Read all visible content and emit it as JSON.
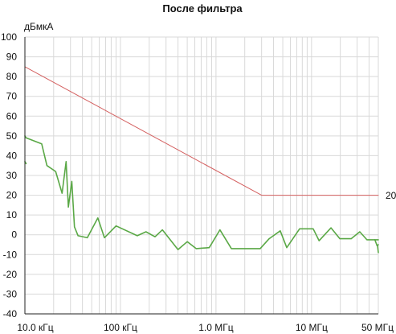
{
  "chart_data": {
    "type": "line",
    "title": "После фильтра",
    "ylabel": "дБмкА",
    "xlabel": "",
    "x_scale": "log",
    "xlim": [
      10000,
      50000000
    ],
    "ylim": [
      -40,
      100
    ],
    "y_ticks": [
      100,
      90,
      80,
      70,
      60,
      50,
      40,
      30,
      20,
      10,
      0,
      -10,
      -20,
      -30,
      -40
    ],
    "x_ticks": [
      {
        "value": 10000,
        "label": "10.0 кГц"
      },
      {
        "value": 100000,
        "label": "100 кГц"
      },
      {
        "value": 1000000,
        "label": "1.0 МГц"
      },
      {
        "value": 10000000,
        "label": "10 МГц"
      },
      {
        "value": 50000000,
        "label": "50 МГц"
      }
    ],
    "grid": true,
    "limit_label": "20",
    "colors": {
      "limit": "#d46060",
      "measurement": "#5aa846",
      "grid": "#d9d9d9",
      "axis": "#222222"
    },
    "series": [
      {
        "role": "limit",
        "x": [
          10000,
          3000000,
          50000000
        ],
        "y": [
          85,
          20,
          20
        ]
      },
      {
        "role": "measurement",
        "x": [
          10000,
          10300,
          15000,
          17000,
          21000,
          24500,
          27000,
          28500,
          31000,
          33000,
          36000,
          45000,
          58000,
          68000,
          90000,
          150000,
          185000,
          230000,
          275000,
          400000,
          500000,
          620000,
          850000,
          1100000,
          1450000,
          2000000,
          2900000,
          3600000,
          4700000,
          5500000,
          7500000,
          8700000,
          10400000,
          12000000,
          16000000,
          19800000,
          23000000,
          26000000,
          32000000,
          38000000,
          46000000,
          50000000
        ],
        "y": [
          50,
          49,
          46,
          35,
          32,
          21,
          37,
          14,
          27,
          4,
          -0.5,
          -1.5,
          8.5,
          -1.5,
          4.5,
          -0.5,
          1.5,
          -1,
          2.5,
          -7.5,
          -3.5,
          -7,
          -6.5,
          2.5,
          -7,
          -7,
          -7,
          -2,
          2,
          -6.5,
          3,
          3,
          3,
          -3,
          3.5,
          -2,
          -2,
          -2,
          1.5,
          -2.5,
          -2.5,
          -2.5
        ]
      },
      {
        "role": "measurement-left-edge",
        "x": [
          10000,
          10300
        ],
        "y": [
          37,
          36
        ]
      },
      {
        "role": "measurement-right-edge",
        "x": [
          46000000,
          48500000,
          50000000
        ],
        "y": [
          -2.5,
          -5.5,
          -5
        ]
      },
      {
        "role": "measurement-right-drop",
        "x": [
          49000000,
          50000000
        ],
        "y": [
          -5.5,
          -9
        ]
      }
    ]
  }
}
